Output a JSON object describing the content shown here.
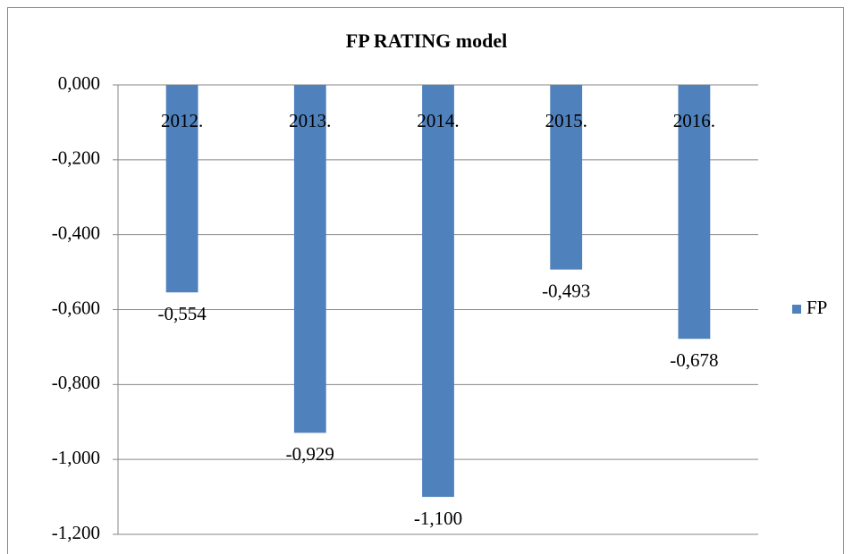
{
  "chart_data": {
    "type": "bar",
    "title": "FP RATING model",
    "categories": [
      "2012.",
      "2013.",
      "2014.",
      "2015.",
      "2016."
    ],
    "series": [
      {
        "name": "FP",
        "color": "#4f81bd",
        "values": [
          -0.554,
          -0.929,
          -1.1,
          -0.493,
          -0.678
        ],
        "value_labels": [
          "-0,554",
          "-0,929",
          "-1,100",
          "-0,493",
          "-0,678"
        ]
      }
    ],
    "ylim": [
      -1.2,
      0
    ],
    "yticks": [
      {
        "value": 0,
        "label": "0,000"
      },
      {
        "value": -0.2,
        "label": "-0,200"
      },
      {
        "value": -0.4,
        "label": "-0,400"
      },
      {
        "value": -0.6,
        "label": "-0,600"
      },
      {
        "value": -0.8,
        "label": "-0,800"
      },
      {
        "value": -1,
        "label": "-1,000"
      },
      {
        "value": -1.2,
        "label": "-1,200"
      }
    ],
    "grid": true,
    "legend": "right"
  }
}
